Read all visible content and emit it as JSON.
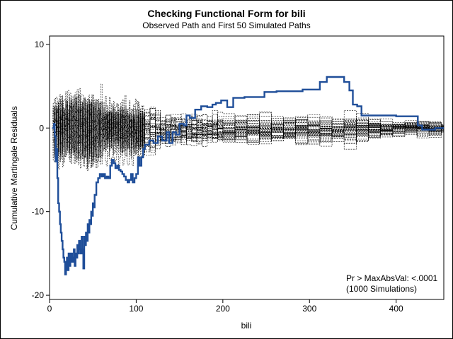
{
  "chart_data": {
    "type": "line",
    "title": "Checking Functional Form for bili",
    "subtitle": "Observed Path and First 50 Simulated Paths",
    "xlabel": "bili",
    "ylabel": "Cumulative Martingale Residuals",
    "xlim": [
      0,
      455
    ],
    "ylim": [
      -20.5,
      11
    ],
    "xticks": [
      0,
      100,
      200,
      300,
      400
    ],
    "yticks": [
      -20,
      -10,
      0,
      10
    ],
    "annotation": [
      "Pr > MaxAbsVal: <.0001",
      "(1000 Simulations)"
    ],
    "observed_color": "#1f4e99",
    "simulated_color": "#000000",
    "simulated_count": 50,
    "observed_path": [
      [
        3,
        0
      ],
      [
        5,
        0.5
      ],
      [
        6,
        -1.0
      ],
      [
        7,
        -4.0
      ],
      [
        8,
        -2.5
      ],
      [
        9,
        -6
      ],
      [
        10,
        -9
      ],
      [
        11,
        -10
      ],
      [
        12,
        -11.5
      ],
      [
        13,
        -12.5
      ],
      [
        14,
        -13.5
      ],
      [
        15,
        -14.5
      ],
      [
        16,
        -15.5
      ],
      [
        17,
        -16
      ],
      [
        18,
        -17.5
      ],
      [
        19,
        -16
      ],
      [
        20,
        -15.5
      ],
      [
        21,
        -17
      ],
      [
        22,
        -15
      ],
      [
        23,
        -16.5
      ],
      [
        24,
        -15.5
      ],
      [
        25,
        -15
      ],
      [
        26,
        -16
      ],
      [
        27,
        -15.5
      ],
      [
        28,
        -14.5
      ],
      [
        29,
        -16.5
      ],
      [
        30,
        -15
      ],
      [
        31,
        -15.5
      ],
      [
        32,
        -14
      ],
      [
        33,
        -15
      ],
      [
        34,
        -13.5
      ],
      [
        35,
        -14.5
      ],
      [
        36,
        -15
      ],
      [
        37,
        -13
      ],
      [
        38,
        -14.5
      ],
      [
        39,
        -16.8
      ],
      [
        40,
        -13
      ],
      [
        41,
        -14
      ],
      [
        42,
        -12.5
      ],
      [
        43,
        -13.5
      ],
      [
        44,
        -11.5
      ],
      [
        45,
        -12.5
      ],
      [
        46,
        -11
      ],
      [
        47,
        -11.5
      ],
      [
        48,
        -10
      ],
      [
        49,
        -10.5
      ],
      [
        50,
        -9
      ],
      [
        51,
        -9.5
      ],
      [
        52,
        -8
      ],
      [
        54,
        -6.5
      ],
      [
        56,
        -6
      ],
      [
        58,
        -5.5
      ],
      [
        60,
        -5.8
      ],
      [
        62,
        -5.5
      ],
      [
        64,
        -6
      ],
      [
        66,
        -5.8
      ],
      [
        68,
        -6
      ],
      [
        70,
        -4.5
      ],
      [
        72,
        -3.8
      ],
      [
        74,
        -4.2
      ],
      [
        76,
        -4.8
      ],
      [
        78,
        -4.5
      ],
      [
        80,
        -5
      ],
      [
        82,
        -5.2
      ],
      [
        84,
        -5.5
      ],
      [
        86,
        -5.8
      ],
      [
        88,
        -6.2
      ],
      [
        90,
        -6.5
      ],
      [
        92,
        -6.2
      ],
      [
        94,
        -5.5
      ],
      [
        96,
        -6.5
      ],
      [
        98,
        -6
      ],
      [
        100,
        -5.5
      ],
      [
        102,
        -3.5
      ],
      [
        104,
        -4.5
      ],
      [
        106,
        -3.5
      ],
      [
        108,
        -2.5
      ],
      [
        110,
        -2
      ],
      [
        115,
        -1.5
      ],
      [
        120,
        -1.8
      ],
      [
        125,
        -1
      ],
      [
        130,
        -1.5
      ],
      [
        135,
        -0.5
      ],
      [
        138,
        -1.8
      ],
      [
        142,
        -0.5
      ],
      [
        146,
        -0.8
      ],
      [
        150,
        0.5
      ],
      [
        155,
        0.3
      ],
      [
        158,
        1.5
      ],
      [
        162,
        1.2
      ],
      [
        168,
        2.2
      ],
      [
        175,
        2.6
      ],
      [
        182,
        2.5
      ],
      [
        188,
        2.8
      ],
      [
        192,
        3.0
      ],
      [
        198,
        3.3
      ],
      [
        205,
        2.5
      ],
      [
        212,
        3.6
      ],
      [
        225,
        3.7
      ],
      [
        235,
        3.7
      ],
      [
        248,
        4.3
      ],
      [
        262,
        4.4
      ],
      [
        280,
        4.4
      ],
      [
        292,
        4.6
      ],
      [
        305,
        4.6
      ],
      [
        312,
        5.5
      ],
      [
        320,
        6.1
      ],
      [
        330,
        6.1
      ],
      [
        340,
        5.5
      ],
      [
        346,
        4.5
      ],
      [
        350,
        2.8
      ],
      [
        355,
        2.6
      ],
      [
        360,
        1.5
      ],
      [
        380,
        1.5
      ],
      [
        400,
        1.4
      ],
      [
        415,
        1.4
      ],
      [
        425,
        0.3
      ],
      [
        430,
        -0.2
      ],
      [
        445,
        0
      ],
      [
        455,
        0
      ]
    ]
  }
}
